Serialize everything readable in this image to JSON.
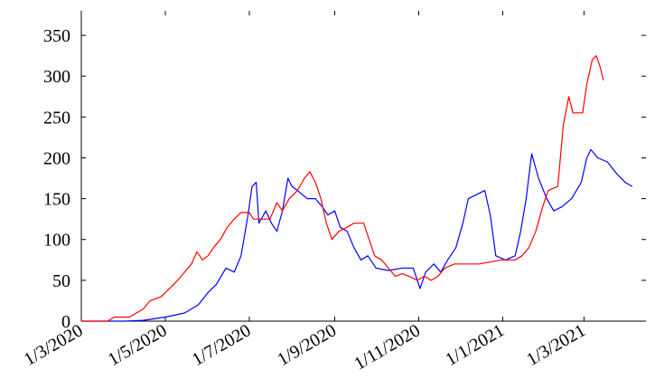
{
  "chart_data": {
    "type": "line",
    "title": "",
    "xlabel": "",
    "ylabel": "",
    "x_range": [
      "2020-03-01",
      "2021-04-15"
    ],
    "ylim": [
      0,
      380
    ],
    "grid": false,
    "legend": "none",
    "y_ticks": [
      0,
      50,
      100,
      150,
      200,
      250,
      300,
      350
    ],
    "y_tick_labels": [
      "0",
      "50",
      "100",
      "150",
      "200",
      "250",
      "300",
      "350"
    ],
    "x_ticks": [
      {
        "date": "2020-03-01",
        "label": "1/3/2020"
      },
      {
        "date": "2020-05-01",
        "label": "1/5/2020"
      },
      {
        "date": "2020-07-01",
        "label": "1/7/2020"
      },
      {
        "date": "2020-09-01",
        "label": "1/9/2020"
      },
      {
        "date": "2020-11-01",
        "label": "1/11/2020"
      },
      {
        "date": "2021-01-01",
        "label": "1/1/2021"
      },
      {
        "date": "2021-03-01",
        "label": "1/3/2021"
      }
    ],
    "series": [
      {
        "color": "#0000ff",
        "points": [
          [
            "2020-03-01",
            0
          ],
          [
            "2020-04-01",
            0
          ],
          [
            "2020-04-15",
            1
          ],
          [
            "2020-05-01",
            5
          ],
          [
            "2020-05-15",
            10
          ],
          [
            "2020-05-25",
            20
          ],
          [
            "2020-06-01",
            35
          ],
          [
            "2020-06-07",
            45
          ],
          [
            "2020-06-14",
            65
          ],
          [
            "2020-06-20",
            60
          ],
          [
            "2020-06-25",
            80
          ],
          [
            "2020-06-30",
            130
          ],
          [
            "2020-07-03",
            165
          ],
          [
            "2020-07-06",
            170
          ],
          [
            "2020-07-08",
            120
          ],
          [
            "2020-07-13",
            135
          ],
          [
            "2020-07-17",
            120
          ],
          [
            "2020-07-21",
            110
          ],
          [
            "2020-07-25",
            135
          ],
          [
            "2020-07-29",
            175
          ],
          [
            "2020-08-01",
            165
          ],
          [
            "2020-08-05",
            160
          ],
          [
            "2020-08-12",
            150
          ],
          [
            "2020-08-18",
            150
          ],
          [
            "2020-08-23",
            140
          ],
          [
            "2020-08-27",
            130
          ],
          [
            "2020-09-01",
            135
          ],
          [
            "2020-09-05",
            115
          ],
          [
            "2020-09-10",
            110
          ],
          [
            "2020-09-15",
            90
          ],
          [
            "2020-09-20",
            75
          ],
          [
            "2020-09-25",
            80
          ],
          [
            "2020-10-01",
            65
          ],
          [
            "2020-10-10",
            62
          ],
          [
            "2020-10-20",
            65
          ],
          [
            "2020-10-28",
            65
          ],
          [
            "2020-11-02",
            40
          ],
          [
            "2020-11-06",
            60
          ],
          [
            "2020-11-12",
            70
          ],
          [
            "2020-11-17",
            60
          ],
          [
            "2020-11-22",
            75
          ],
          [
            "2020-11-28",
            90
          ],
          [
            "2020-12-03",
            120
          ],
          [
            "2020-12-07",
            150
          ],
          [
            "2020-12-13",
            155
          ],
          [
            "2020-12-19",
            160
          ],
          [
            "2020-12-23",
            130
          ],
          [
            "2020-12-27",
            80
          ],
          [
            "2021-01-03",
            75
          ],
          [
            "2021-01-10",
            80
          ],
          [
            "2021-01-14",
            110
          ],
          [
            "2021-01-18",
            150
          ],
          [
            "2021-01-22",
            205
          ],
          [
            "2021-01-27",
            175
          ],
          [
            "2021-02-02",
            150
          ],
          [
            "2021-02-07",
            135
          ],
          [
            "2021-02-13",
            140
          ],
          [
            "2021-02-20",
            150
          ],
          [
            "2021-02-27",
            170
          ],
          [
            "2021-03-03",
            200
          ],
          [
            "2021-03-06",
            210
          ],
          [
            "2021-03-11",
            200
          ],
          [
            "2021-03-18",
            195
          ],
          [
            "2021-03-25",
            180
          ],
          [
            "2021-03-31",
            170
          ],
          [
            "2021-04-05",
            165
          ]
        ]
      },
      {
        "color": "#ff0000",
        "points": [
          [
            "2020-03-01",
            0
          ],
          [
            "2020-03-20",
            0
          ],
          [
            "2020-03-25",
            5
          ],
          [
            "2020-04-05",
            5
          ],
          [
            "2020-04-10",
            10
          ],
          [
            "2020-04-15",
            15
          ],
          [
            "2020-04-20",
            25
          ],
          [
            "2020-04-28",
            30
          ],
          [
            "2020-05-04",
            40
          ],
          [
            "2020-05-10",
            50
          ],
          [
            "2020-05-15",
            60
          ],
          [
            "2020-05-20",
            70
          ],
          [
            "2020-05-24",
            85
          ],
          [
            "2020-05-28",
            75
          ],
          [
            "2020-06-01",
            80
          ],
          [
            "2020-06-05",
            90
          ],
          [
            "2020-06-10",
            100
          ],
          [
            "2020-06-15",
            115
          ],
          [
            "2020-06-20",
            125
          ],
          [
            "2020-06-25",
            133
          ],
          [
            "2020-07-01",
            133
          ],
          [
            "2020-07-04",
            125
          ],
          [
            "2020-07-10",
            125
          ],
          [
            "2020-07-16",
            125
          ],
          [
            "2020-07-21",
            145
          ],
          [
            "2020-07-25",
            135
          ],
          [
            "2020-07-30",
            150
          ],
          [
            "2020-08-05",
            160
          ],
          [
            "2020-08-10",
            175
          ],
          [
            "2020-08-14",
            183
          ],
          [
            "2020-08-18",
            170
          ],
          [
            "2020-08-22",
            150
          ],
          [
            "2020-08-26",
            120
          ],
          [
            "2020-08-30",
            100
          ],
          [
            "2020-09-04",
            110
          ],
          [
            "2020-09-10",
            115
          ],
          [
            "2020-09-15",
            120
          ],
          [
            "2020-09-22",
            120
          ],
          [
            "2020-09-26",
            100
          ],
          [
            "2020-09-30",
            80
          ],
          [
            "2020-10-05",
            75
          ],
          [
            "2020-10-10",
            65
          ],
          [
            "2020-10-15",
            55
          ],
          [
            "2020-10-20",
            58
          ],
          [
            "2020-10-25",
            55
          ],
          [
            "2020-10-31",
            50
          ],
          [
            "2020-11-05",
            55
          ],
          [
            "2020-11-10",
            50
          ],
          [
            "2020-11-15",
            55
          ],
          [
            "2020-11-20",
            65
          ],
          [
            "2020-11-27",
            70
          ],
          [
            "2020-12-15",
            70
          ],
          [
            "2020-12-31",
            75
          ],
          [
            "2021-01-10",
            75
          ],
          [
            "2021-01-15",
            80
          ],
          [
            "2021-01-20",
            90
          ],
          [
            "2021-01-25",
            110
          ],
          [
            "2021-01-30",
            140
          ],
          [
            "2021-02-03",
            160
          ],
          [
            "2021-02-10",
            165
          ],
          [
            "2021-02-14",
            240
          ],
          [
            "2021-02-18",
            275
          ],
          [
            "2021-02-21",
            255
          ],
          [
            "2021-02-28",
            255
          ],
          [
            "2021-03-03",
            290
          ],
          [
            "2021-03-07",
            320
          ],
          [
            "2021-03-10",
            325
          ],
          [
            "2021-03-13",
            310
          ],
          [
            "2021-03-15",
            295
          ]
        ]
      }
    ]
  }
}
